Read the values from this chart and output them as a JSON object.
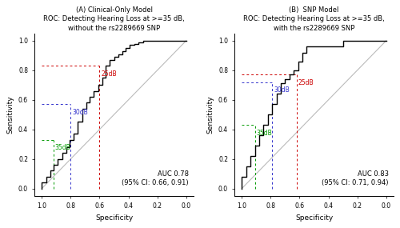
{
  "panel_A": {
    "title_line1": "(A) Clinical-Only Model",
    "title_line2": "ROC: Detecting Hearing Loss at >=35 dB,",
    "title_line3": "without the rs2289669 SNP",
    "auc_text": "AUC 0.78\n(95% CI: 0.66, 0.91)",
    "roc_x": [
      1.0,
      1.0,
      0.97,
      0.97,
      0.94,
      0.94,
      0.92,
      0.92,
      0.89,
      0.89,
      0.86,
      0.86,
      0.83,
      0.83,
      0.81,
      0.81,
      0.78,
      0.78,
      0.75,
      0.75,
      0.72,
      0.72,
      0.69,
      0.69,
      0.67,
      0.67,
      0.64,
      0.64,
      0.61,
      0.61,
      0.58,
      0.58,
      0.56,
      0.56,
      0.53,
      0.53,
      0.5,
      0.5,
      0.47,
      0.47,
      0.44,
      0.44,
      0.42,
      0.42,
      0.39,
      0.39,
      0.36,
      0.36,
      0.33,
      0.33,
      0.3,
      0.3,
      0.17,
      0.17,
      0.0,
      0.0
    ],
    "roc_y": [
      0.0,
      0.04,
      0.04,
      0.08,
      0.08,
      0.12,
      0.12,
      0.16,
      0.16,
      0.2,
      0.2,
      0.24,
      0.24,
      0.28,
      0.28,
      0.33,
      0.33,
      0.37,
      0.37,
      0.45,
      0.45,
      0.54,
      0.54,
      0.58,
      0.58,
      0.62,
      0.62,
      0.66,
      0.66,
      0.7,
      0.7,
      0.75,
      0.75,
      0.83,
      0.83,
      0.87,
      0.87,
      0.89,
      0.89,
      0.91,
      0.91,
      0.93,
      0.93,
      0.95,
      0.95,
      0.97,
      0.97,
      0.98,
      0.98,
      0.99,
      0.99,
      1.0,
      1.0,
      1.0,
      1.0,
      1.0
    ],
    "point_25dB": {
      "spec": 0.6,
      "sens": 0.83,
      "color": "#CC0000",
      "label": "25dB"
    },
    "point_30dB": {
      "spec": 0.8,
      "sens": 0.57,
      "color": "#3333CC",
      "label": "30dB"
    },
    "point_35dB": {
      "spec": 0.92,
      "sens": 0.33,
      "color": "#009900",
      "label": "35dB"
    }
  },
  "panel_B": {
    "title_line1": "(B)  SNP Model",
    "title_line2": "ROC: Detecting Hearing Loss at >=35 dB,",
    "title_line3": "with the rs2289669 SNP",
    "auc_text": "AUC 0.83\n(95% CI: 0.71, 0.94)",
    "roc_x": [
      1.0,
      1.0,
      0.97,
      0.97,
      0.94,
      0.94,
      0.91,
      0.91,
      0.88,
      0.88,
      0.85,
      0.85,
      0.82,
      0.82,
      0.79,
      0.79,
      0.76,
      0.76,
      0.73,
      0.73,
      0.7,
      0.7,
      0.67,
      0.67,
      0.64,
      0.64,
      0.61,
      0.61,
      0.58,
      0.58,
      0.55,
      0.55,
      0.3,
      0.3,
      0.27,
      0.27,
      0.0,
      0.0
    ],
    "roc_y": [
      0.0,
      0.08,
      0.08,
      0.15,
      0.15,
      0.22,
      0.22,
      0.29,
      0.29,
      0.36,
      0.36,
      0.43,
      0.43,
      0.5,
      0.5,
      0.57,
      0.57,
      0.64,
      0.64,
      0.71,
      0.71,
      0.74,
      0.74,
      0.77,
      0.77,
      0.8,
      0.8,
      0.86,
      0.86,
      0.92,
      0.92,
      0.96,
      0.96,
      1.0,
      1.0,
      1.0,
      1.0,
      1.0
    ],
    "point_25dB": {
      "spec": 0.62,
      "sens": 0.77,
      "color": "#CC0000",
      "label": "25dB"
    },
    "point_30dB": {
      "spec": 0.79,
      "sens": 0.72,
      "color": "#3333CC",
      "label": "30dB"
    },
    "point_35dB": {
      "spec": 0.91,
      "sens": 0.43,
      "color": "#009900",
      "label": "35dB"
    }
  },
  "diag_color": "#BBBBBB",
  "roc_color": "#000000",
  "xlabel": "Specificity",
  "ylabel": "Sensitivity",
  "xtick_vals": [
    1.0,
    0.8,
    0.6,
    0.4,
    0.2,
    0.0
  ],
  "xtick_labels": [
    "1.0",
    "0.8",
    "0.6",
    "0.4",
    "0.2",
    "0.0"
  ],
  "ytick_vals": [
    0.0,
    0.2,
    0.4,
    0.6,
    0.8,
    1.0
  ],
  "ytick_labels": [
    "0.0",
    "0.2",
    "0.4",
    "0.6",
    "0.8",
    "1.0"
  ]
}
